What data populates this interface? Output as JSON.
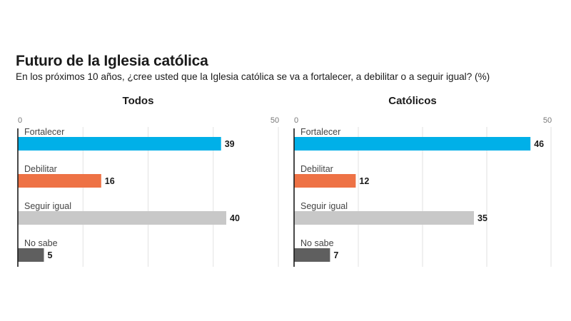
{
  "header": {
    "title": "Futuro de la Iglesia católica",
    "subtitle": "En los próximos 10 años, ¿cree usted que la Iglesia católica se va a fortalecer, a debilitar o a seguir igual? (%)"
  },
  "colors": {
    "Fortalecer": "#00b0e8",
    "Debilitar": "#ee7245",
    "Seguir igual": "#c8c8c8",
    "No sabe": "#5f5f5f"
  },
  "chart_data": [
    {
      "type": "bar",
      "orientation": "horizontal",
      "title": "Todos",
      "categories": [
        "Fortalecer",
        "Debilitar",
        "Seguir igual",
        "No sabe"
      ],
      "values": [
        39,
        16,
        40,
        5
      ],
      "xlim": [
        0,
        50
      ],
      "tick_labels": [
        "0",
        "50"
      ],
      "grid": true,
      "xlabel": "",
      "ylabel": ""
    },
    {
      "type": "bar",
      "orientation": "horizontal",
      "title": "Católicos",
      "categories": [
        "Fortalecer",
        "Debilitar",
        "Seguir igual",
        "No sabe"
      ],
      "values": [
        46,
        12,
        35,
        7
      ],
      "xlim": [
        0,
        50
      ],
      "tick_labels": [
        "0",
        "50"
      ],
      "grid": true,
      "xlabel": "",
      "ylabel": ""
    }
  ]
}
